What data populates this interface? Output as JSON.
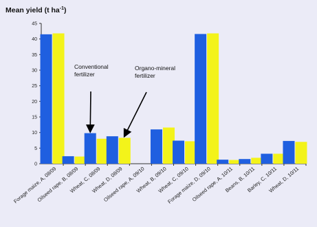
{
  "chart_data": {
    "type": "bar",
    "ylabel_prefix": "Mean yield (t ha",
    "ylabel_exp": "-1",
    "ylabel_suffix": ")",
    "ylim": [
      0,
      45
    ],
    "yticks": [
      0,
      5,
      10,
      15,
      20,
      25,
      30,
      35,
      40,
      45
    ],
    "grid": false,
    "categories": [
      "Forage maize, A, 08/09",
      "Oilseed rape, B, 08/09",
      "Wheat, C, 08/09",
      "Wheat, D, 08/09",
      "Oilseed rape, A, 09/10",
      "Wheat, B, 09/10",
      "Wheat, C, 09/10",
      "Forage maize, D, 09/10",
      "Oilseed rape, A, 10/11",
      "Beans, B, 10/11",
      "Barley, C, 10/11",
      "Wheat, D, 10/11"
    ],
    "series": [
      {
        "color": "#1f5fe0",
        "values": [
          41.5,
          2.4,
          9.8,
          8.8,
          0,
          11.0,
          7.4,
          41.6,
          1.3,
          1.5,
          3.2,
          7.3
        ]
      },
      {
        "color": "#f3f31a",
        "values": [
          41.8,
          2.3,
          8.0,
          8.3,
          0,
          11.6,
          7.2,
          41.8,
          1.2,
          1.9,
          3.2,
          7.0
        ]
      }
    ],
    "annotations": [
      {
        "label": [
          "Conventional",
          "fertilizer"
        ],
        "category": 2,
        "series": 0
      },
      {
        "label": [
          "Organo-mineral",
          "fertilizer"
        ],
        "category": 3,
        "series": 1
      }
    ]
  }
}
